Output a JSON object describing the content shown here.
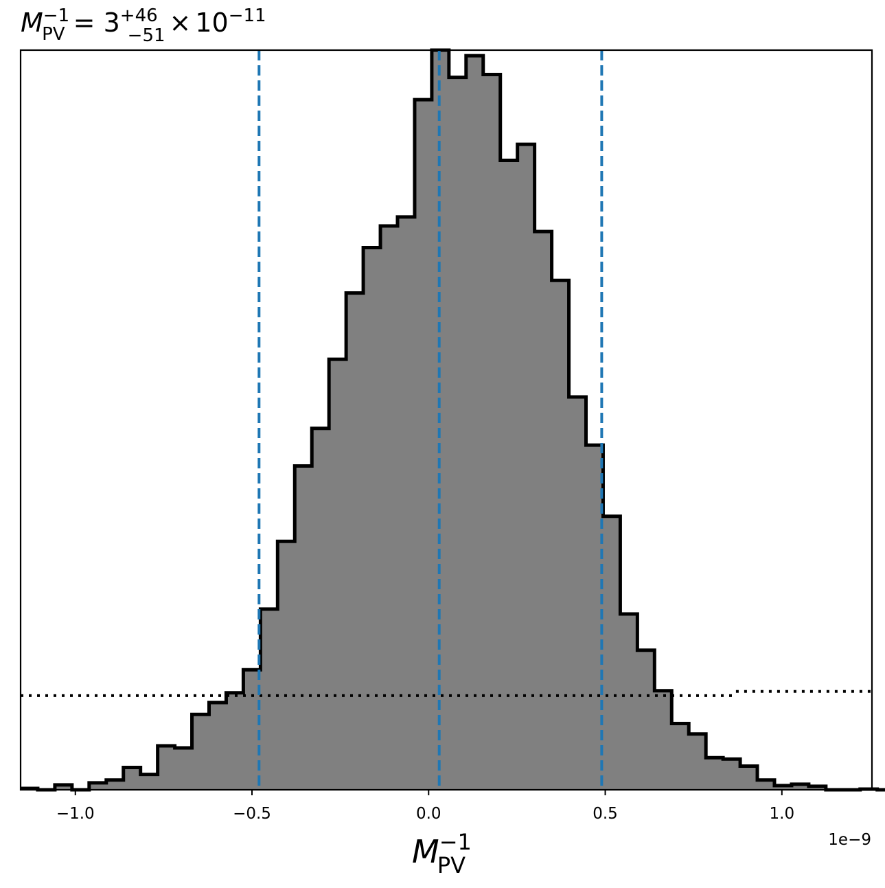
{
  "chart_data": {
    "type": "histogram",
    "title": {
      "symbol": "M",
      "subscript": "PV",
      "superscript": "−1",
      "equals": " = ",
      "value": "3",
      "upper_err": "+46",
      "lower_err": "−51",
      "times": "×",
      "base": "10",
      "exponent": "−11"
    },
    "xlabel": {
      "symbol": "M",
      "subscript": "PV",
      "superscript": "−1"
    },
    "x_offset_label": "1e−9",
    "xlim": [
      -1.155,
      1.255
    ],
    "ylim": [
      0,
      1060
    ],
    "bin_start": -1.155,
    "bin_width": 0.0485,
    "counts": [
      2,
      0,
      7,
      0,
      10,
      14,
      32,
      22,
      63,
      60,
      108,
      125,
      139,
      172,
      259,
      356,
      464,
      518,
      617,
      712,
      777,
      808,
      821,
      989,
      1060,
      1021,
      1052,
      1025,
      902,
      925,
      800,
      730,
      563,
      494,
      392,
      252,
      200,
      142,
      95,
      80,
      46,
      44,
      34,
      14,
      6,
      8,
      5,
      0,
      0,
      1,
      0
    ],
    "quantile_lines": [
      -0.48,
      0.03,
      0.49
    ],
    "prior_line": {
      "segments": [
        {
          "x": [
            -1.155,
            0.87
          ],
          "y": 135
        },
        {
          "x": [
            0.87,
            1.255
          ],
          "y": 141
        }
      ]
    },
    "xticks": [
      -1.0,
      -0.5,
      0.0,
      0.5,
      1.0
    ],
    "xtick_labels": [
      "−1.0",
      "−0.5",
      "0.0",
      "0.5",
      "1.0"
    ],
    "colors": {
      "fill": "#808080",
      "edge": "#000000",
      "quantile": "#1f77b4",
      "prior": "#000000"
    },
    "grid": false,
    "legend": "none"
  }
}
